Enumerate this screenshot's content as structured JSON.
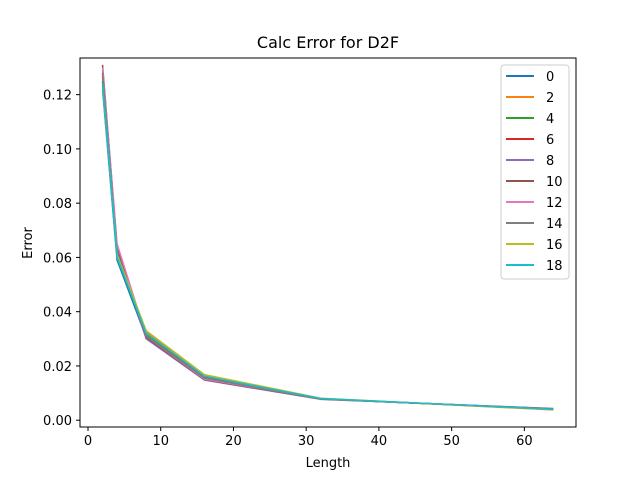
{
  "chart_data": {
    "type": "line",
    "title": "Calc Error for D2F",
    "xlabel": "Length",
    "ylabel": "Error",
    "xlim": [
      -1.1,
      67.1
    ],
    "ylim": [
      -0.0025,
      0.1335
    ],
    "xticks": [
      0,
      10,
      20,
      30,
      40,
      50,
      60
    ],
    "yticks": [
      0.0,
      0.02,
      0.04,
      0.06,
      0.08,
      0.1,
      0.12
    ],
    "ytick_labels": [
      "0.00",
      "0.02",
      "0.04",
      "0.06",
      "0.08",
      "0.10",
      "0.12"
    ],
    "grid": false,
    "legend": "top-right",
    "x": [
      2,
      4,
      8,
      16,
      32,
      64
    ],
    "series": [
      {
        "name": "0",
        "color": "#1f77b4",
        "values": [
          0.122,
          0.059,
          0.0305,
          0.0155,
          0.0078,
          0.0042
        ]
      },
      {
        "name": "2",
        "color": "#ff7f0e",
        "values": [
          0.124,
          0.061,
          0.0325,
          0.0165,
          0.008,
          0.0038
        ]
      },
      {
        "name": "4",
        "color": "#2ca02c",
        "values": [
          0.125,
          0.06,
          0.0315,
          0.016,
          0.0079,
          0.004
        ]
      },
      {
        "name": "6",
        "color": "#d62728",
        "values": [
          0.127,
          0.062,
          0.031,
          0.0158,
          0.0079,
          0.0041
        ]
      },
      {
        "name": "8",
        "color": "#9467bd",
        "values": [
          0.129,
          0.063,
          0.03,
          0.0148,
          0.0077,
          0.0043
        ]
      },
      {
        "name": "10",
        "color": "#8c564b",
        "values": [
          0.131,
          0.064,
          0.0305,
          0.015,
          0.0078,
          0.0042
        ]
      },
      {
        "name": "12",
        "color": "#e377c2",
        "values": [
          0.13,
          0.065,
          0.031,
          0.0152,
          0.0079,
          0.0041
        ]
      },
      {
        "name": "14",
        "color": "#7f7f7f",
        "values": [
          0.128,
          0.062,
          0.031,
          0.0155,
          0.0078,
          0.0042
        ]
      },
      {
        "name": "16",
        "color": "#bcbd22",
        "values": [
          0.123,
          0.061,
          0.033,
          0.0168,
          0.0081,
          0.0039
        ]
      },
      {
        "name": "18",
        "color": "#17becf",
        "values": [
          0.124,
          0.06,
          0.032,
          0.0162,
          0.008,
          0.004
        ]
      }
    ]
  }
}
